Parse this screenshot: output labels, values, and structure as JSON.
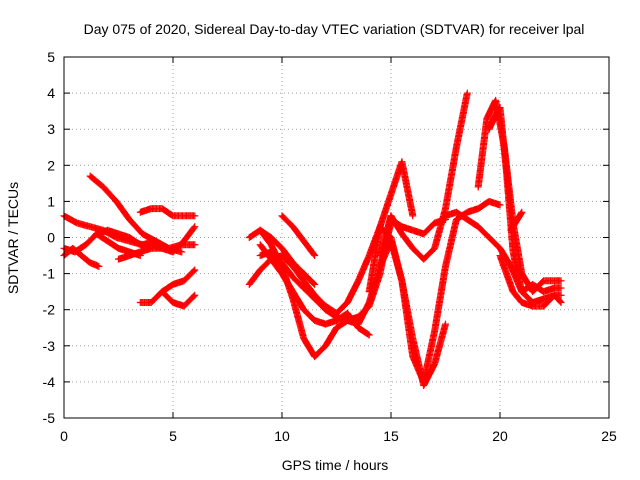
{
  "chart_data": {
    "type": "scatter",
    "title": "Day 075 of 2020, Sidereal Day-to-day VTEC variation (SDTVAR) for receiver lpal",
    "xlabel": "GPS time / hours",
    "ylabel": "SDTVAR / TECUs",
    "xlim": [
      0,
      25
    ],
    "ylim": [
      -5,
      5
    ],
    "xticks": [
      0,
      5,
      10,
      15,
      20,
      25
    ],
    "yticks": [
      -5,
      -4,
      -3,
      -2,
      -1,
      0,
      1,
      2,
      3,
      4,
      5
    ],
    "grid": true,
    "marker": "+",
    "color": "#ff0000",
    "series": [
      {
        "x": [
          0.0,
          0.6,
          1.2,
          1.8,
          2.4,
          3.0,
          3.6,
          4.2,
          4.8,
          5.4,
          6.0
        ],
        "y": [
          0.6,
          0.4,
          0.3,
          0.2,
          0.0,
          -0.1,
          -0.2,
          -0.1,
          -0.3,
          -0.2,
          -0.2
        ]
      },
      {
        "x": [
          0.0,
          0.5,
          1.0,
          1.5,
          2.0,
          2.5,
          3.0,
          3.5,
          4.0,
          4.5,
          5.0,
          5.5,
          6.0
        ],
        "y": [
          -0.3,
          -0.4,
          -0.2,
          0.1,
          0.2,
          0.1,
          0.0,
          -0.2,
          -0.2,
          -0.3,
          -0.4,
          -0.1,
          0.3
        ]
      },
      {
        "x": [
          0.0,
          0.4,
          0.8,
          1.2,
          1.6
        ],
        "y": [
          -0.5,
          -0.3,
          -0.5,
          -0.7,
          -0.8
        ]
      },
      {
        "x": [
          1.2,
          1.8,
          2.4,
          3.0,
          3.6,
          4.2,
          4.8,
          5.4
        ],
        "y": [
          1.7,
          1.4,
          1.0,
          0.5,
          0.1,
          -0.1,
          -0.3,
          -0.4
        ]
      },
      {
        "x": [
          1.5,
          2.0,
          2.5,
          3.0,
          3.5
        ],
        "y": [
          0.1,
          -0.1,
          -0.3,
          -0.4,
          -0.5
        ]
      },
      {
        "x": [
          2.5,
          3.0,
          3.5,
          4.0,
          4.5
        ],
        "y": [
          -0.6,
          -0.5,
          -0.4,
          -0.3,
          -0.3
        ]
      },
      {
        "x": [
          3.5,
          4.0,
          4.5,
          5.0,
          5.5,
          6.0
        ],
        "y": [
          0.7,
          0.8,
          0.8,
          0.6,
          0.6,
          0.6
        ]
      },
      {
        "x": [
          3.5,
          4.0,
          4.5,
          5.0,
          5.5,
          6.0
        ],
        "y": [
          -1.8,
          -1.8,
          -1.5,
          -1.8,
          -1.9,
          -1.6
        ]
      },
      {
        "x": [
          4.5,
          5.0,
          5.5,
          6.0
        ],
        "y": [
          -1.5,
          -1.3,
          -1.2,
          -0.9
        ]
      },
      {
        "x": [
          8.5,
          9.0,
          9.5,
          10.0,
          10.5,
          11.0,
          11.5,
          12.0,
          12.5,
          13.0,
          13.5,
          14.0,
          14.5,
          15.0,
          15.5,
          16.0
        ],
        "y": [
          -1.3,
          -0.9,
          -0.6,
          -0.5,
          -0.8,
          -1.2,
          -1.6,
          -1.9,
          -2.1,
          -1.8,
          -1.2,
          -0.5,
          0.3,
          1.2,
          2.1,
          0.6
        ]
      },
      {
        "x": [
          8.5,
          9.0,
          9.5,
          10.0,
          10.5,
          11.0,
          11.5,
          12.0,
          12.5,
          13.0,
          13.5,
          14.0,
          14.5,
          15.0
        ],
        "y": [
          0.0,
          0.2,
          -0.2,
          -0.8,
          -1.7,
          -2.8,
          -3.3,
          -3.0,
          -2.5,
          -2.3,
          -2.2,
          -1.9,
          -1.0,
          0.6
        ]
      },
      {
        "x": [
          9.0,
          9.5,
          10.0,
          10.5,
          11.0,
          11.5,
          12.0,
          12.5,
          13.0,
          13.5,
          14.0,
          14.5,
          15.0
        ],
        "y": [
          -0.5,
          -0.4,
          -0.7,
          -1.1,
          -1.4,
          -1.7,
          -2.0,
          -2.2,
          -2.3,
          -2.4,
          -1.8,
          -0.8,
          0.4
        ]
      },
      {
        "x": [
          9.0,
          9.5,
          10.0,
          10.5,
          11.0,
          11.5,
          12.0,
          12.5,
          13.0,
          13.5,
          14.0
        ],
        "y": [
          -0.2,
          -0.6,
          -1.0,
          -1.5,
          -2.0,
          -2.3,
          -2.4,
          -2.3,
          -2.1,
          -2.5,
          -2.7
        ]
      },
      {
        "x": [
          9.0,
          9.5,
          10.0,
          10.5,
          11.0,
          11.5
        ],
        "y": [
          0.2,
          0.0,
          -0.3,
          -0.7,
          -1.0,
          -1.3
        ]
      },
      {
        "x": [
          10.0,
          10.5,
          11.0,
          11.5
        ],
        "y": [
          0.6,
          0.3,
          -0.1,
          -0.5
        ]
      },
      {
        "x": [
          14.0,
          14.5,
          15.0,
          15.5,
          16.0,
          16.5,
          17.0,
          17.5,
          18.0,
          18.5,
          19.0,
          19.5,
          20.0
        ],
        "y": [
          -1.5,
          0.3,
          0.0,
          -1.2,
          -3.3,
          -4.0,
          -2.6,
          -0.8,
          0.5,
          0.7,
          0.8,
          1.0,
          0.9
        ]
      },
      {
        "x": [
          14.5,
          15.0,
          15.5,
          16.0,
          16.5,
          17.0,
          17.5
        ],
        "y": [
          -0.8,
          -0.1,
          -1.2,
          -2.8,
          -4.1,
          -3.5,
          -2.4
        ]
      },
      {
        "x": [
          14.5,
          15.0,
          15.5,
          16.0,
          16.5,
          17.0,
          17.5,
          18.0,
          18.5
        ],
        "y": [
          -0.5,
          0.6,
          0.1,
          -0.3,
          -0.6,
          -0.3,
          0.8,
          2.5,
          4.0
        ]
      },
      {
        "x": [
          15.0,
          15.5,
          16.0,
          16.5,
          17.0,
          17.5
        ],
        "y": [
          0.5,
          0.3,
          0.2,
          0.1,
          0.4,
          0.5
        ]
      },
      {
        "x": [
          17.5,
          18.0,
          18.5,
          19.0,
          19.5,
          20.0,
          20.5,
          21.0,
          21.5,
          22.0,
          22.5,
          22.8
        ],
        "y": [
          0.6,
          0.7,
          0.5,
          0.3,
          0.0,
          -0.3,
          -0.8,
          -1.5,
          -1.3,
          -1.5,
          -1.4,
          -1.4
        ]
      },
      {
        "x": [
          19.0,
          19.4,
          19.8,
          20.2,
          20.6,
          21.0,
          21.5,
          22.0,
          22.5,
          22.8
        ],
        "y": [
          1.4,
          3.3,
          3.8,
          2.5,
          0.4,
          -1.0,
          -1.5,
          -1.2,
          -1.2,
          -1.2
        ]
      },
      {
        "x": [
          19.5,
          19.8,
          20.0,
          20.3,
          20.6,
          21.0,
          21.5,
          22.0,
          22.5,
          22.8
        ],
        "y": [
          3.0,
          3.4,
          3.6,
          1.8,
          -0.4,
          -1.5,
          -1.8,
          -1.7,
          -1.6,
          -1.8
        ]
      },
      {
        "x": [
          20.0,
          20.3,
          20.6,
          21.0,
          21.5,
          22.0,
          22.5,
          22.8
        ],
        "y": [
          -0.5,
          -1.0,
          -1.5,
          -1.8,
          -1.9,
          -1.9,
          -1.6,
          -1.6
        ]
      },
      {
        "x": [
          20.5,
          20.8,
          21.0
        ],
        "y": [
          0.2,
          0.5,
          0.7
        ]
      }
    ]
  }
}
